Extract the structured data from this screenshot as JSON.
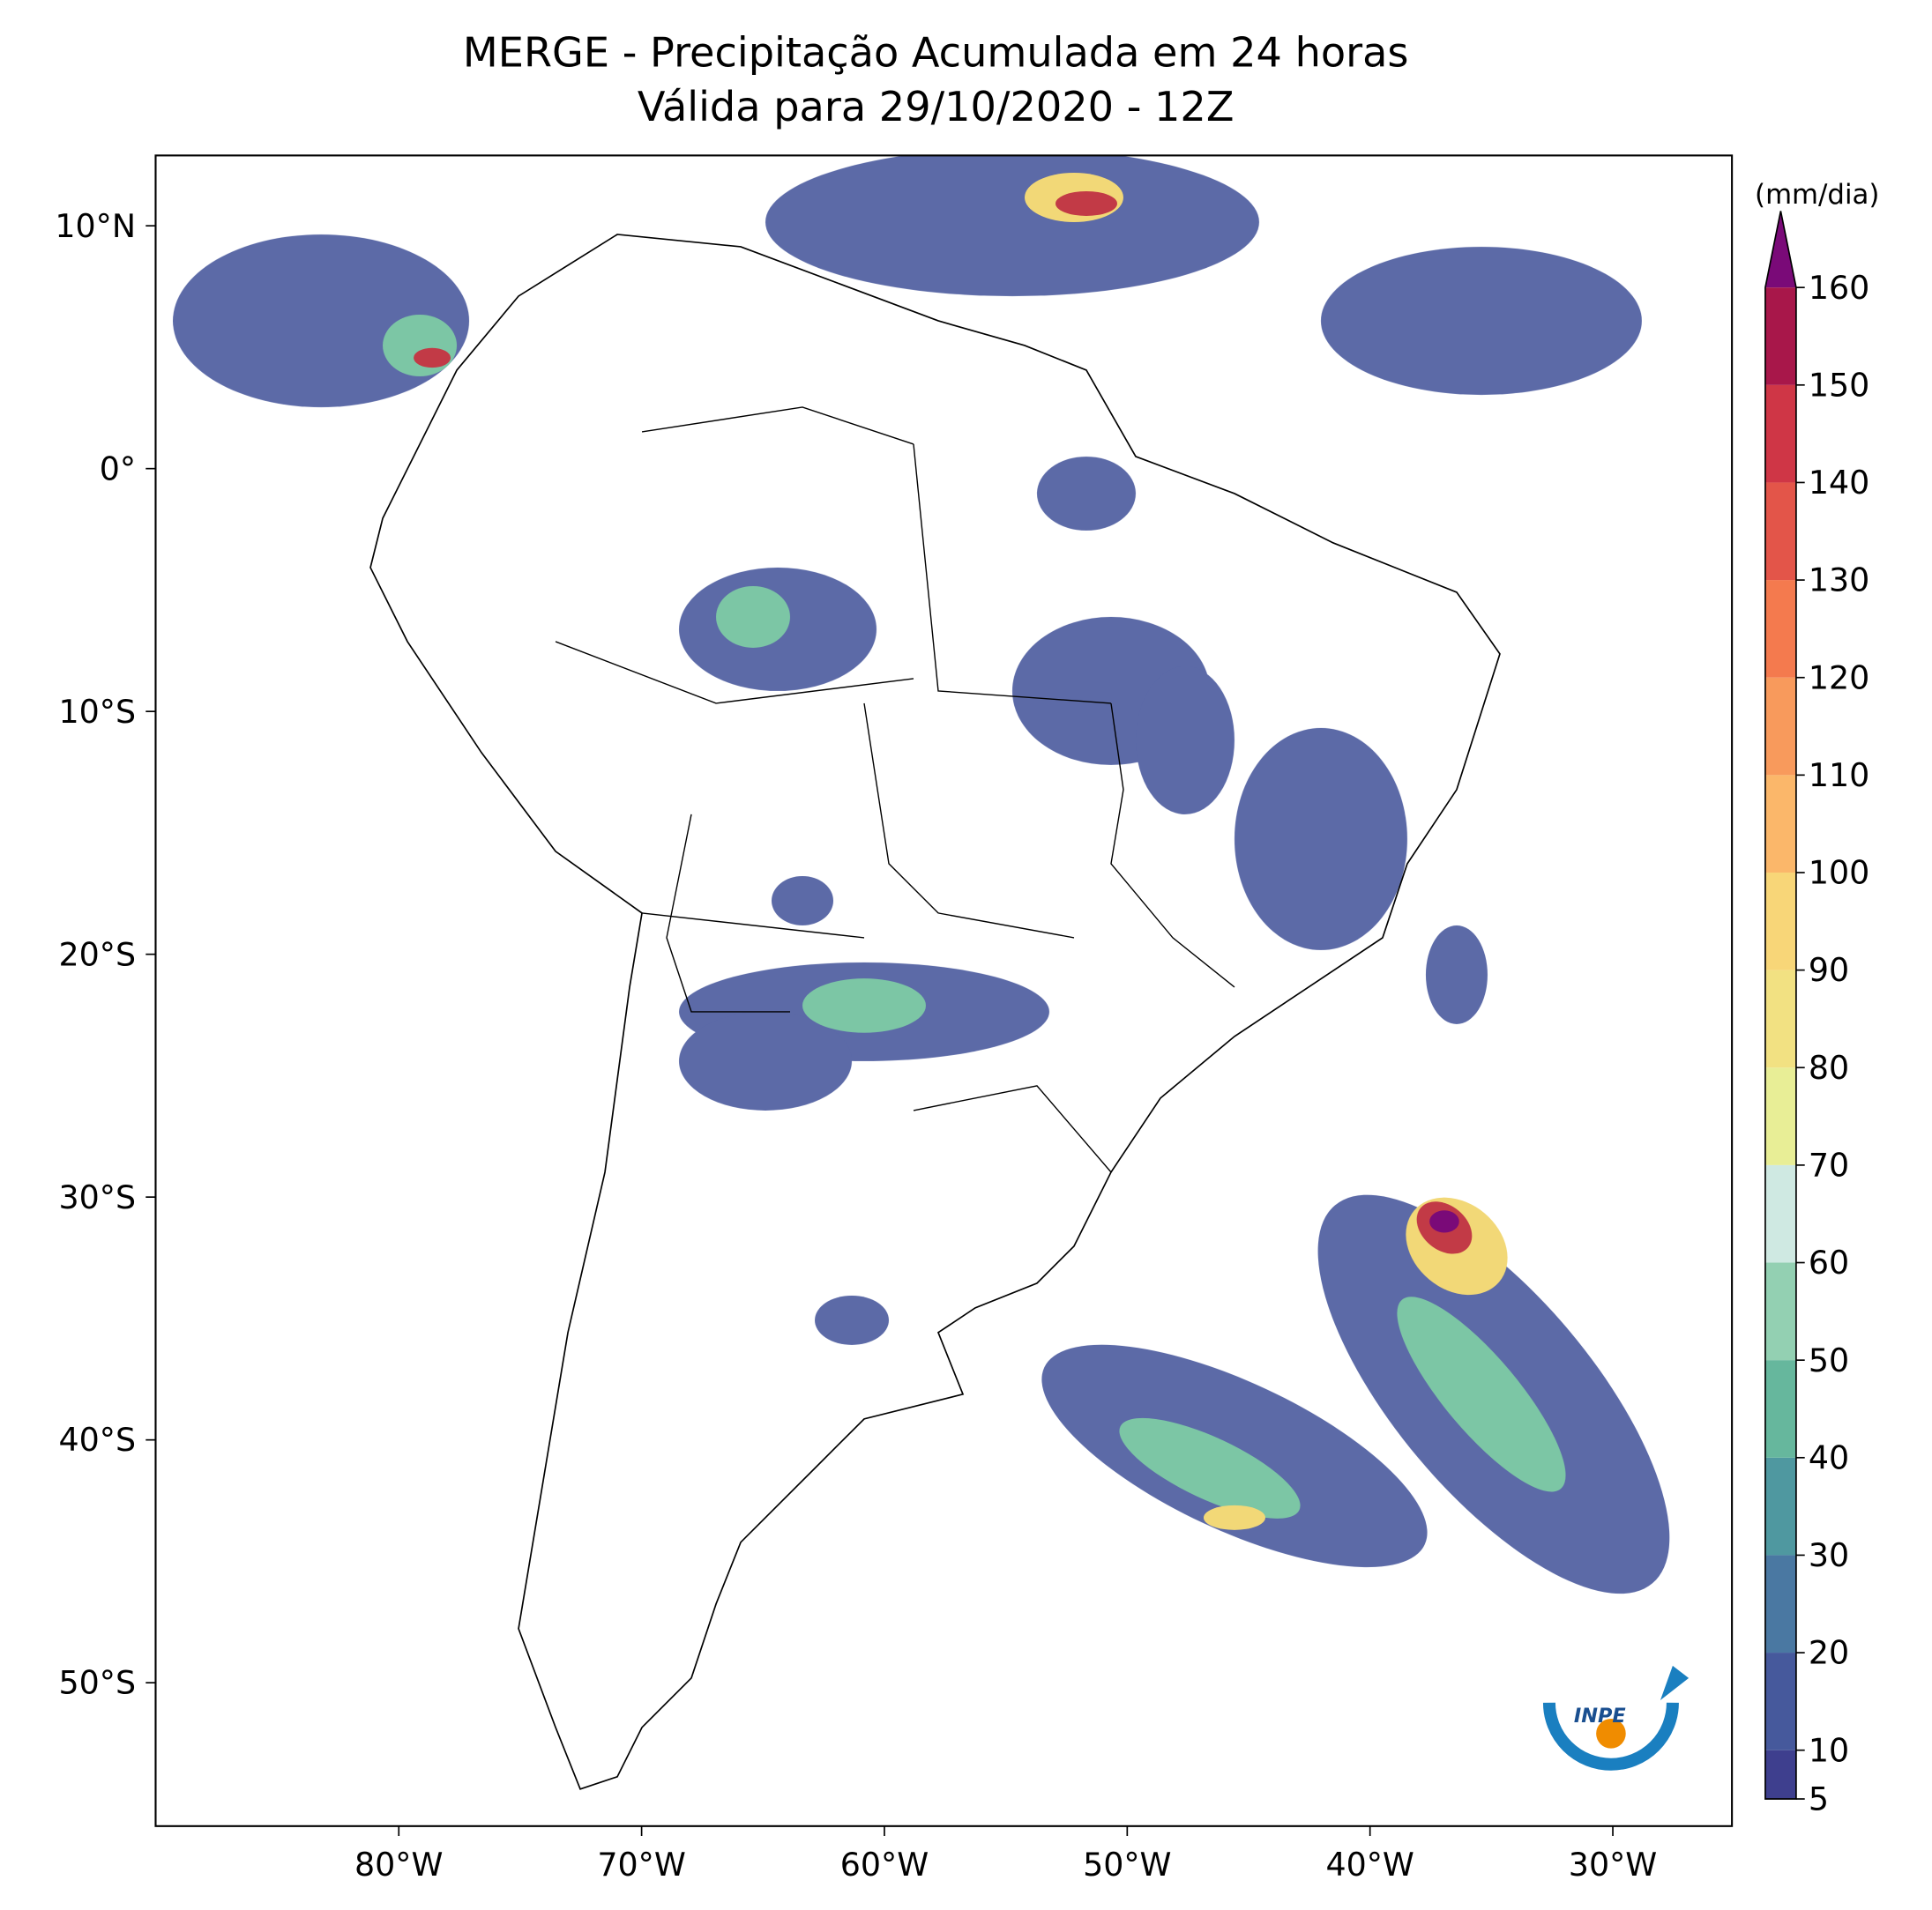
{
  "map": {
    "title": "MERGE - Precipitação Acumulada em 24 horas",
    "subtitle": "Válida para 29/10/2020 - 12Z",
    "lon_labels": [
      "80°W",
      "70°W",
      "60°W",
      "50°W",
      "40°W",
      "30°W"
    ],
    "lat_labels": [
      "10°N",
      "0°",
      "10°S",
      "20°S",
      "30°S",
      "40°S",
      "50°S"
    ],
    "colorbar": {
      "unit": "(mm/dia)",
      "lim": [
        5,
        160
      ],
      "ticks": [
        5,
        10,
        20,
        30,
        40,
        50,
        60,
        70,
        80,
        90,
        100,
        110,
        120,
        130,
        140,
        150,
        160
      ],
      "colors": [
        "#3e3f8e",
        "#46599c",
        "#4a78a2",
        "#4f98a0",
        "#66b79d",
        "#93d0b2",
        "#cfe9e2",
        "#e8ee96",
        "#f2e182",
        "#f8d678",
        "#fbb76a",
        "#f89a5c",
        "#f47a4e",
        "#e35549",
        "#cf3646",
        "#a8174a"
      ],
      "extend_color": "#7a0a78"
    },
    "logo": "INPE"
  }
}
